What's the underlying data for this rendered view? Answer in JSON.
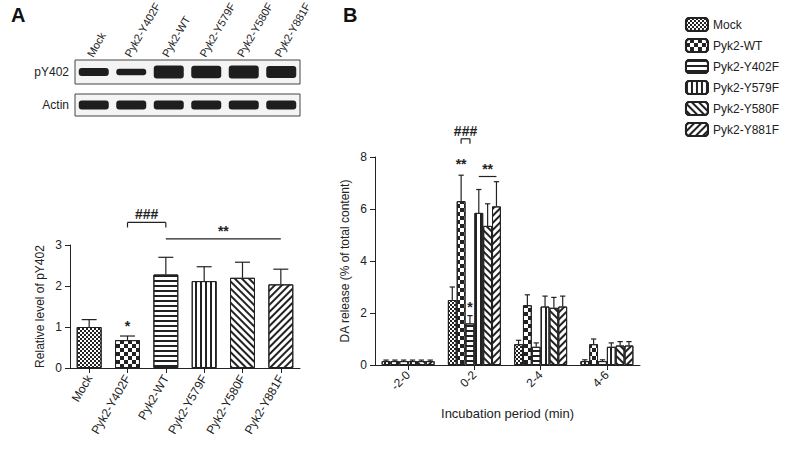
{
  "chart_data": [
    {
      "type": "bar",
      "title": "A",
      "categories": [
        "Mock",
        "Pyk2-Y402F",
        "Pyk2-WT",
        "Pyk2-Y579F",
        "Pyk2-Y580F",
        "Pyk2-Y881F"
      ],
      "values": [
        1.0,
        0.68,
        2.28,
        2.12,
        2.2,
        2.04
      ],
      "errors": [
        0.18,
        0.1,
        0.42,
        0.35,
        0.38,
        0.37
      ],
      "ylabel": "Relative level of pY402",
      "ylim": [
        0,
        3
      ],
      "yticks": [
        0,
        1,
        2,
        3
      ],
      "color": "#222222",
      "annotations": [
        {
          "text": "*",
          "category": "Pyk2-Y402F",
          "y": 0.85
        },
        {
          "text": "###",
          "from": "Pyk2-Y402F",
          "to": "Pyk2-WT",
          "y": 3.55
        },
        {
          "text": "**",
          "from": "Pyk2-WT",
          "to": "Pyk2-Y881F",
          "y": 3.15
        }
      ]
    },
    {
      "type": "bar",
      "title": "B",
      "categories": [
        "-2-0",
        "0-2",
        "2-4",
        "4-6"
      ],
      "xlabel": "Incubation period (min)",
      "ylabel": "DA release (% of total content)",
      "ylim": [
        0,
        8
      ],
      "yticks": [
        0,
        2,
        4,
        6,
        8
      ],
      "color": "#222222",
      "legend": "right",
      "series": [
        {
          "name": "Mock",
          "values": [
            0.15,
            2.5,
            0.8,
            0.15
          ],
          "errors": [
            0.04,
            0.5,
            0.15,
            0.05
          ]
        },
        {
          "name": "Pyk2-WT",
          "values": [
            0.15,
            6.3,
            2.3,
            0.8
          ],
          "errors": [
            0.04,
            1.0,
            0.4,
            0.2
          ]
        },
        {
          "name": "Pyk2-Y402F",
          "values": [
            0.15,
            1.6,
            0.7,
            0.15
          ],
          "errors": [
            0.04,
            0.3,
            0.15,
            0.05
          ]
        },
        {
          "name": "Pyk2-Y579F",
          "values": [
            0.15,
            5.85,
            2.25,
            0.7
          ],
          "errors": [
            0.04,
            0.9,
            0.4,
            0.15
          ]
        },
        {
          "name": "Pyk2-Y580F",
          "values": [
            0.15,
            5.35,
            2.2,
            0.75
          ],
          "errors": [
            0.04,
            0.85,
            0.4,
            0.15
          ]
        },
        {
          "name": "Pyk2-Y881F",
          "values": [
            0.15,
            6.1,
            2.25,
            0.75
          ],
          "errors": [
            0.04,
            0.95,
            0.4,
            0.15
          ]
        }
      ],
      "annotations": [
        {
          "text": "**",
          "category": "0-2",
          "series": "Pyk2-WT",
          "y": 7.45
        },
        {
          "text": "*",
          "category": "0-2",
          "series": "Pyk2-Y402F",
          "y": 1.95
        },
        {
          "text": "###",
          "category": "0-2",
          "from": "Pyk2-WT",
          "to": "Pyk2-Y402F",
          "y": 8.7
        },
        {
          "text": "**",
          "category": "0-2",
          "from": "Pyk2-Y579F",
          "to": "Pyk2-Y881F",
          "y": 7.25
        }
      ]
    }
  ],
  "blot": {
    "lanes": [
      "Mock",
      "Pyk2-Y402F",
      "Pyk2-WT",
      "Pyk2-Y579F",
      "Pyk2-Y580F",
      "Pyk2-Y881F"
    ],
    "rows": [
      "pY402",
      "Actin"
    ]
  }
}
